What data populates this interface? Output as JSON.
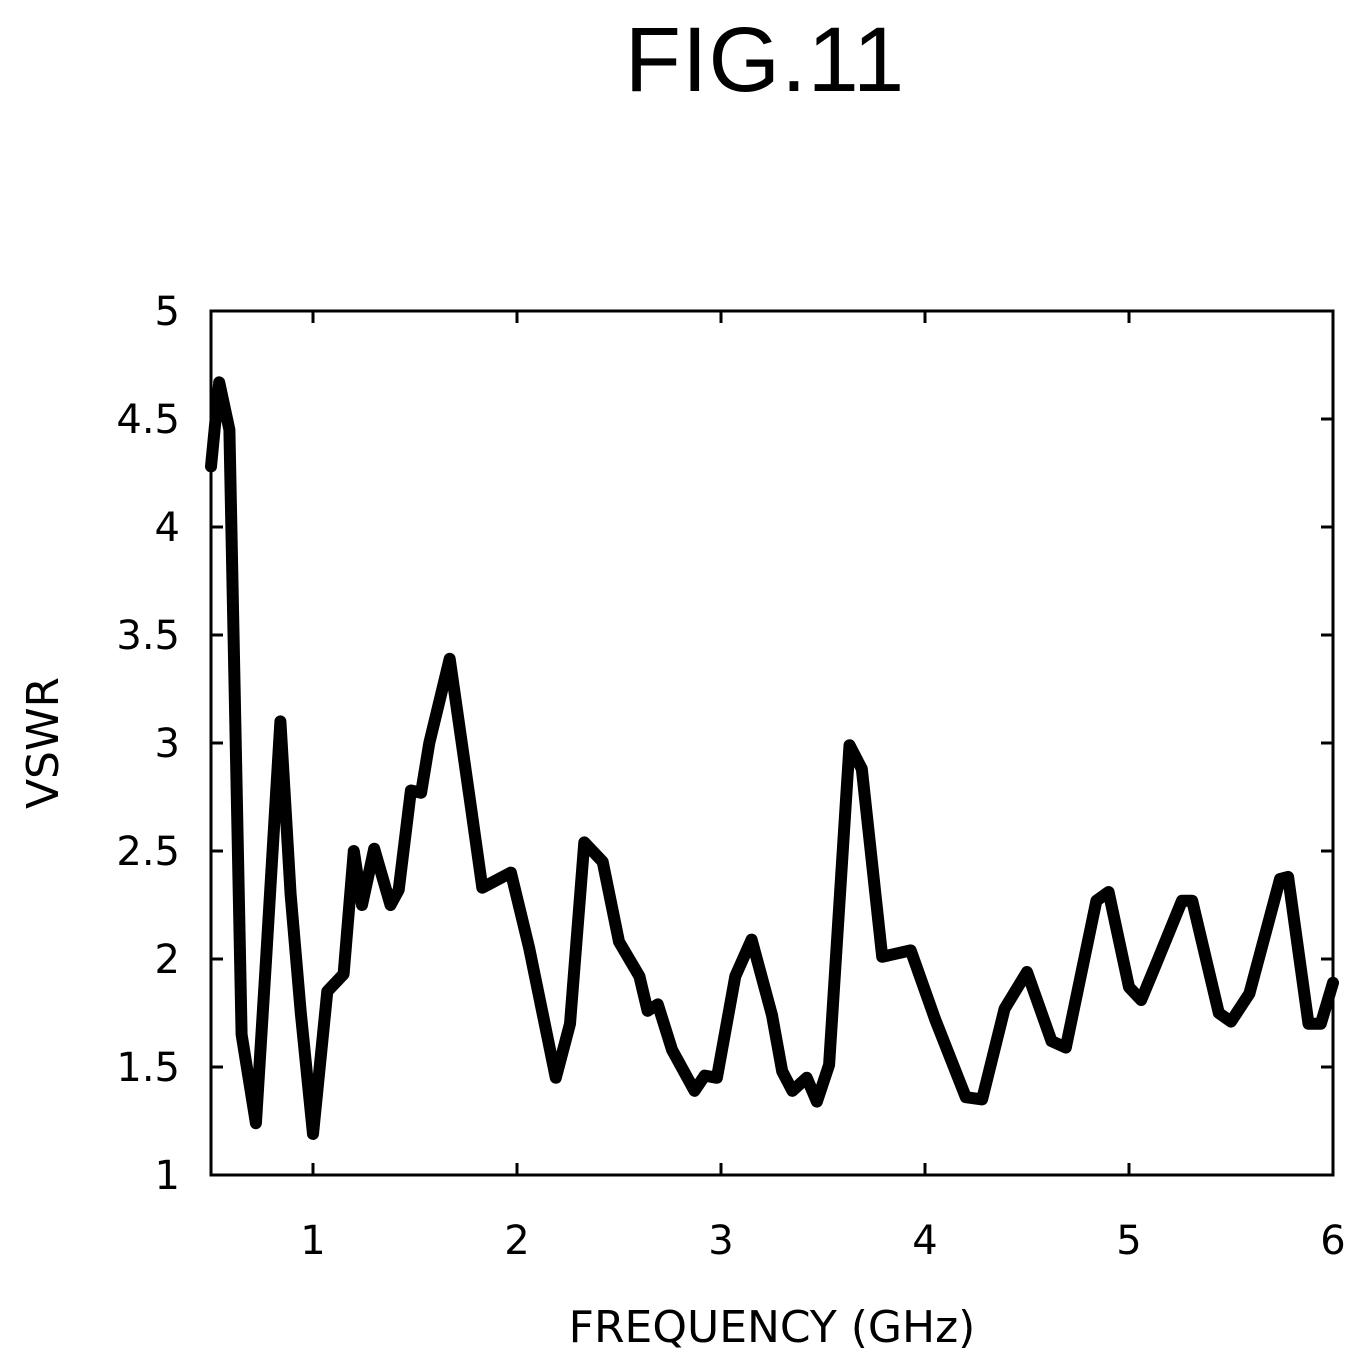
{
  "figure_title": "FIG.11",
  "chart_data": {
    "type": "line",
    "title": "",
    "xlabel": "FREQUENCY (GHz)",
    "ylabel": "VSWR",
    "xlim": [
      0.5,
      6
    ],
    "ylim": [
      1,
      5
    ],
    "xticks": [
      1,
      2,
      3,
      4,
      5,
      6
    ],
    "yticks": [
      1,
      1.5,
      2,
      2.5,
      3,
      3.5,
      4,
      4.5,
      5
    ],
    "xtick_labels": [
      "1",
      "2",
      "3",
      "4",
      "5",
      "6"
    ],
    "ytick_labels": [
      "1",
      "1.5",
      "2",
      "2.5",
      "3",
      "3.5",
      "4",
      "4.5",
      "5"
    ],
    "grid": false,
    "line_color": "#000000",
    "series": [
      {
        "x": [
          0.5,
          0.54,
          0.59,
          0.65,
          0.72,
          0.77,
          0.84,
          0.89,
          0.94,
          1.0,
          1.07,
          1.15,
          1.2,
          1.24,
          1.3,
          1.38,
          1.42,
          1.48,
          1.53,
          1.57,
          1.67,
          1.77,
          1.83,
          1.97,
          2.06,
          2.19,
          2.26,
          2.33,
          2.42,
          2.5,
          2.6,
          2.64,
          2.69,
          2.76,
          2.87,
          2.92,
          2.98,
          3.07,
          3.15,
          3.25,
          3.3,
          3.35,
          3.42,
          3.47,
          3.53,
          3.63,
          3.69,
          3.79,
          3.93,
          4.05,
          4.2,
          4.28,
          4.39,
          4.5,
          4.62,
          4.69,
          4.84,
          4.9,
          5.0,
          5.06,
          5.13,
          5.26,
          5.31,
          5.44,
          5.5,
          5.59,
          5.74,
          5.78,
          5.88,
          5.94,
          6.0
        ],
        "y": [
          4.28,
          4.67,
          4.45,
          1.65,
          1.24,
          2.0,
          3.1,
          2.3,
          1.75,
          1.19,
          1.85,
          1.93,
          2.5,
          2.25,
          2.51,
          2.25,
          2.32,
          2.78,
          2.77,
          3.0,
          3.39,
          2.73,
          2.33,
          2.4,
          2.05,
          1.45,
          1.7,
          2.54,
          2.45,
          2.08,
          1.92,
          1.76,
          1.79,
          1.58,
          1.39,
          1.46,
          1.45,
          1.92,
          2.09,
          1.74,
          1.48,
          1.39,
          1.45,
          1.34,
          1.51,
          2.99,
          2.88,
          2.01,
          2.04,
          1.72,
          1.36,
          1.35,
          1.77,
          1.94,
          1.62,
          1.59,
          2.27,
          2.31,
          1.87,
          1.81,
          1.97,
          2.27,
          2.27,
          1.75,
          1.71,
          1.84,
          2.37,
          2.38,
          1.7,
          1.7,
          1.89
        ]
      }
    ]
  }
}
